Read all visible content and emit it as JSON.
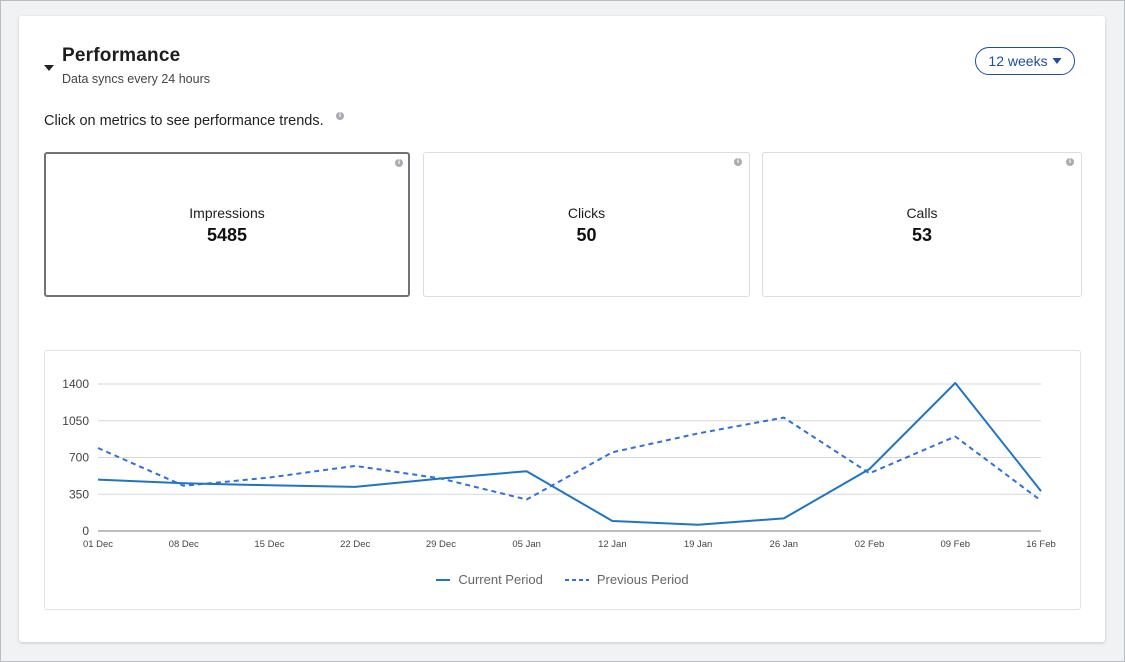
{
  "header": {
    "title": "Performance",
    "subtitle": "Data syncs every 24 hours",
    "range_button": "12 weeks"
  },
  "hint": "Click on metrics to see performance trends.",
  "metrics": [
    {
      "label": "Impressions",
      "value": "5485",
      "selected": true
    },
    {
      "label": "Clicks",
      "value": "50",
      "selected": false
    },
    {
      "label": "Calls",
      "value": "53",
      "selected": false
    }
  ],
  "colors": {
    "current": "#1f74c9",
    "previous": "#2f6fe0",
    "accent": "#1f4e9c"
  },
  "chart_data": {
    "type": "line",
    "x": [
      "01 Dec",
      "08 Dec",
      "15 Dec",
      "22 Dec",
      "29 Dec",
      "05 Jan",
      "12 Jan",
      "19 Jan",
      "26 Jan",
      "02 Feb",
      "09 Feb",
      "16 Feb"
    ],
    "yticks": [
      0,
      350,
      700,
      1050,
      1400
    ],
    "ylim": [
      0,
      1400
    ],
    "grid": true,
    "legend_position": "bottom",
    "series": [
      {
        "name": "Current Period",
        "style": "solid",
        "values": [
          490,
          455,
          435,
          420,
          500,
          570,
          95,
          60,
          120,
          590,
          1410,
          380
        ]
      },
      {
        "name": "Previous Period",
        "style": "dashed",
        "values": [
          790,
          430,
          510,
          620,
          500,
          300,
          750,
          930,
          1080,
          550,
          900,
          290
        ]
      }
    ]
  }
}
